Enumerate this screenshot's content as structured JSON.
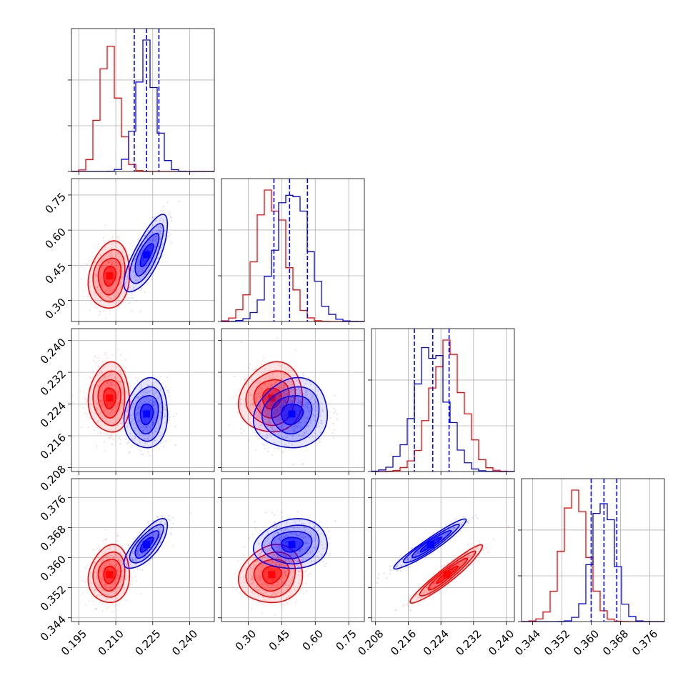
{
  "chart_data": {
    "type": "corner",
    "parameters": 4,
    "grid": true,
    "series": [
      {
        "color": "#ff0000",
        "means": [
          0.2075,
          0.405,
          0.2255,
          0.3555
        ],
        "sds": [
          0.0038,
          0.065,
          0.004,
          0.0035
        ]
      },
      {
        "color": "#0000ff",
        "means": [
          0.2225,
          0.495,
          0.2215,
          0.3635
        ],
        "sds": [
          0.004,
          0.075,
          0.004,
          0.003
        ]
      }
    ],
    "correlations": {
      "red": {
        "1-0": 0.15,
        "2-0": 0.0,
        "2-1": 0.1,
        "3-0": 0.1,
        "3-1": 0.1,
        "3-2": 0.95
      },
      "blue": {
        "1-0": 0.75,
        "2-0": 0.1,
        "2-1": 0.1,
        "3-0": 0.75,
        "3-1": 0.1,
        "3-2": 0.95
      }
    },
    "quantiles_blue": [
      [
        0.2175,
        0.2225,
        0.2275
      ],
      [
        0.415,
        0.485,
        0.565
      ],
      [
        0.2175,
        0.222,
        0.226
      ],
      [
        0.36,
        0.3635,
        0.367
      ]
    ],
    "xranges": [
      [
        0.192,
        0.25
      ],
      [
        0.18,
        0.82
      ],
      [
        0.207,
        0.242
      ],
      [
        0.341,
        0.38
      ]
    ],
    "yrange_row1": [
      0.21,
      0.82
    ],
    "yrange_row2": [
      0.207,
      0.243
    ],
    "yrange_row3": [
      0.343,
      0.381
    ],
    "tick_labels": {
      "x0": [
        "0.195",
        "0.210",
        "0.225",
        "0.240"
      ],
      "x1": [
        "0.30",
        "0.45",
        "0.60",
        "0.75"
      ],
      "x2": [
        "0.208",
        "0.216",
        "0.224",
        "0.232",
        "0.240"
      ],
      "x3": [
        "0.344",
        "0.352",
        "0.360",
        "0.368",
        "0.376"
      ],
      "y1": [
        "0.30",
        "0.45",
        "0.60",
        "0.75"
      ],
      "y2": [
        "0.208",
        "0.216",
        "0.224",
        "0.232",
        "0.240"
      ],
      "y3": [
        "0.344",
        "0.352",
        "0.360",
        "0.368",
        "0.376"
      ]
    }
  }
}
